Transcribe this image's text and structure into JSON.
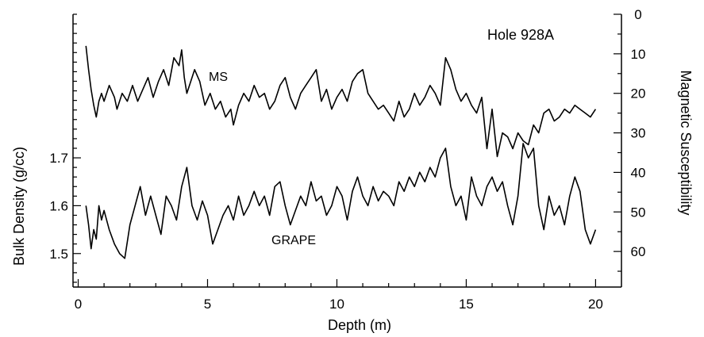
{
  "chart_data": {
    "type": "line",
    "title": "",
    "annotation": "Hole 928A",
    "xlabel": "Depth (m)",
    "ylabel_left": "Bulk Density (g/cc)",
    "ylabel_right": "Magnetic Susceptibility",
    "xlim": [
      -0.2,
      21.0
    ],
    "x_ticks": [
      0,
      5,
      10,
      15,
      20
    ],
    "y_left_ticks": [
      1.5,
      1.6,
      1.7
    ],
    "y_left_range": [
      1.43,
      2.0
    ],
    "y_right_ticks": [
      0,
      10,
      20,
      30,
      40,
      50,
      60
    ],
    "y_right_range": [
      0,
      69
    ],
    "y_right_inverted": true,
    "grid": false,
    "series": [
      {
        "name": "MS",
        "axis": "right",
        "color": "#000000",
        "x": [
          0.3,
          0.4,
          0.5,
          0.6,
          0.7,
          0.8,
          0.9,
          1.0,
          1.2,
          1.4,
          1.5,
          1.7,
          1.9,
          2.1,
          2.3,
          2.5,
          2.7,
          2.9,
          3.1,
          3.3,
          3.5,
          3.7,
          3.9,
          4.0,
          4.1,
          4.2,
          4.3,
          4.5,
          4.7,
          4.9,
          5.1,
          5.3,
          5.5,
          5.7,
          5.9,
          6.0,
          6.2,
          6.4,
          6.6,
          6.8,
          7.0,
          7.2,
          7.4,
          7.6,
          7.8,
          8.0,
          8.2,
          8.4,
          8.6,
          8.8,
          9.0,
          9.2,
          9.4,
          9.6,
          9.8,
          10.0,
          10.2,
          10.4,
          10.6,
          10.8,
          11.0,
          11.2,
          11.4,
          11.6,
          11.8,
          12.0,
          12.2,
          12.4,
          12.6,
          12.8,
          13.0,
          13.2,
          13.4,
          13.6,
          13.8,
          14.0,
          14.2,
          14.4,
          14.6,
          14.8,
          15.0,
          15.2,
          15.4,
          15.6,
          15.8,
          16.0,
          16.2,
          16.4,
          16.6,
          16.8,
          17.0,
          17.2,
          17.4,
          17.6,
          17.8,
          18.0,
          18.2,
          18.4,
          18.6,
          18.8,
          19.0,
          19.2,
          19.4,
          19.6,
          19.8,
          20.0
        ],
        "y": [
          8,
          14,
          19,
          23,
          26,
          22,
          20,
          22,
          18,
          21,
          24,
          20,
          22,
          18,
          22,
          19,
          16,
          21,
          17,
          14,
          18,
          11,
          13,
          9,
          16,
          20,
          18,
          14,
          17,
          23,
          20,
          24,
          22,
          26,
          24,
          28,
          23,
          20,
          22,
          18,
          21,
          20,
          24,
          22,
          18,
          16,
          21,
          24,
          20,
          18,
          16,
          14,
          22,
          19,
          24,
          21,
          19,
          22,
          17,
          15,
          14,
          20,
          22,
          24,
          23,
          25,
          27,
          22,
          26,
          24,
          20,
          23,
          21,
          18,
          20,
          23,
          11,
          14,
          19,
          22,
          20,
          23,
          25,
          21,
          34,
          24,
          36,
          30,
          31,
          34,
          30,
          32,
          33,
          28,
          30,
          25,
          24,
          27,
          26,
          24,
          25,
          23,
          24,
          25,
          26,
          24
        ]
      },
      {
        "name": "GRAPE",
        "axis": "left",
        "color": "#000000",
        "x": [
          0.3,
          0.4,
          0.5,
          0.6,
          0.7,
          0.8,
          0.9,
          1.0,
          1.2,
          1.4,
          1.6,
          1.8,
          2.0,
          2.2,
          2.4,
          2.6,
          2.8,
          3.0,
          3.2,
          3.4,
          3.6,
          3.8,
          4.0,
          4.2,
          4.4,
          4.6,
          4.8,
          5.0,
          5.2,
          5.4,
          5.6,
          5.8,
          6.0,
          6.2,
          6.4,
          6.6,
          6.8,
          7.0,
          7.2,
          7.4,
          7.6,
          7.8,
          8.0,
          8.2,
          8.4,
          8.6,
          8.8,
          9.0,
          9.2,
          9.4,
          9.6,
          9.8,
          10.0,
          10.2,
          10.4,
          10.6,
          10.8,
          11.0,
          11.2,
          11.4,
          11.6,
          11.8,
          12.0,
          12.2,
          12.4,
          12.6,
          12.8,
          13.0,
          13.2,
          13.4,
          13.6,
          13.8,
          14.0,
          14.2,
          14.4,
          14.6,
          14.8,
          15.0,
          15.2,
          15.4,
          15.6,
          15.8,
          16.0,
          16.2,
          16.4,
          16.6,
          16.8,
          17.0,
          17.2,
          17.4,
          17.6,
          17.8,
          18.0,
          18.2,
          18.4,
          18.6,
          18.8,
          19.0,
          19.2,
          19.4,
          19.6,
          19.8,
          20.0
        ],
        "y": [
          1.6,
          1.56,
          1.51,
          1.55,
          1.53,
          1.6,
          1.57,
          1.59,
          1.55,
          1.52,
          1.5,
          1.49,
          1.56,
          1.6,
          1.64,
          1.58,
          1.62,
          1.58,
          1.54,
          1.62,
          1.6,
          1.57,
          1.64,
          1.68,
          1.6,
          1.57,
          1.61,
          1.58,
          1.52,
          1.55,
          1.58,
          1.6,
          1.57,
          1.62,
          1.58,
          1.6,
          1.63,
          1.6,
          1.62,
          1.58,
          1.64,
          1.65,
          1.6,
          1.56,
          1.59,
          1.62,
          1.6,
          1.65,
          1.61,
          1.62,
          1.58,
          1.6,
          1.64,
          1.62,
          1.57,
          1.63,
          1.66,
          1.62,
          1.6,
          1.64,
          1.61,
          1.63,
          1.62,
          1.6,
          1.65,
          1.63,
          1.66,
          1.64,
          1.67,
          1.65,
          1.68,
          1.66,
          1.7,
          1.72,
          1.64,
          1.6,
          1.62,
          1.57,
          1.66,
          1.62,
          1.6,
          1.64,
          1.66,
          1.63,
          1.65,
          1.6,
          1.56,
          1.62,
          1.73,
          1.7,
          1.72,
          1.6,
          1.55,
          1.62,
          1.58,
          1.6,
          1.56,
          1.62,
          1.66,
          1.63,
          1.55,
          1.52,
          1.55
        ]
      }
    ]
  }
}
